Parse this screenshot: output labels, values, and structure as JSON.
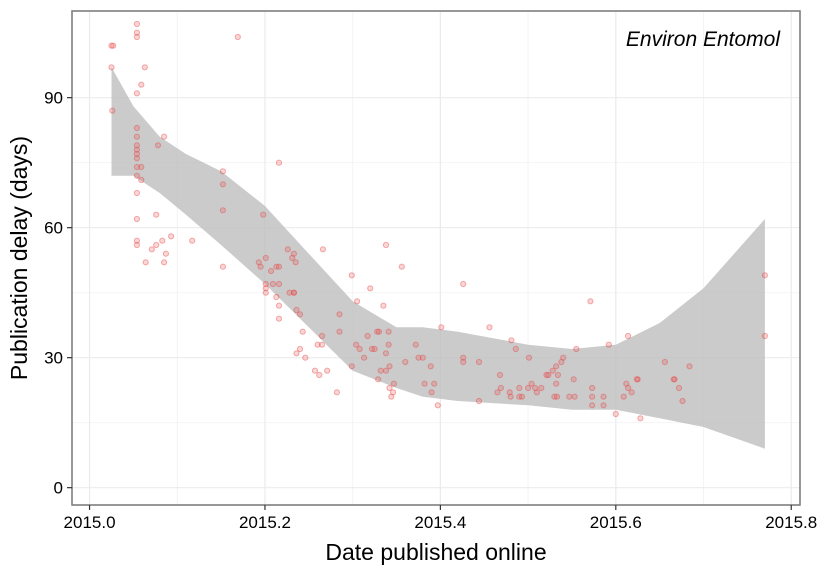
{
  "chart_data": {
    "type": "scatter",
    "title": "",
    "annotation": "Environ Entomol",
    "xlabel": "Date published online",
    "ylabel": "Publication delay (days)",
    "xlim": [
      2014.98,
      2015.81
    ],
    "ylim": [
      -4,
      110
    ],
    "xticks": [
      2015.0,
      2015.2,
      2015.4,
      2015.6,
      2015.8
    ],
    "xtick_labels": [
      "2015.0",
      "2015.2",
      "2015.4",
      "2015.6",
      "2015.8"
    ],
    "yticks": [
      0,
      30,
      60,
      90
    ],
    "ytick_labels": [
      "0",
      "30",
      "60",
      "90"
    ],
    "grid": true,
    "legend": "none",
    "colors": {
      "points": "#e84a4a",
      "band": "#bdbdbd",
      "panel_border": "#7f7f7f",
      "grid": "#ebebeb"
    },
    "points": [
      {
        "x": 2015.025,
        "y": 102
      },
      {
        "x": 2015.027,
        "y": 102
      },
      {
        "x": 2015.025,
        "y": 97
      },
      {
        "x": 2015.026,
        "y": 87
      },
      {
        "x": 2015.054,
        "y": 107
      },
      {
        "x": 2015.054,
        "y": 105
      },
      {
        "x": 2015.054,
        "y": 104
      },
      {
        "x": 2015.054,
        "y": 91
      },
      {
        "x": 2015.054,
        "y": 83
      },
      {
        "x": 2015.054,
        "y": 81
      },
      {
        "x": 2015.054,
        "y": 79
      },
      {
        "x": 2015.054,
        "y": 78
      },
      {
        "x": 2015.054,
        "y": 77
      },
      {
        "x": 2015.054,
        "y": 76
      },
      {
        "x": 2015.054,
        "y": 74
      },
      {
        "x": 2015.054,
        "y": 72
      },
      {
        "x": 2015.054,
        "y": 68
      },
      {
        "x": 2015.054,
        "y": 62
      },
      {
        "x": 2015.054,
        "y": 57
      },
      {
        "x": 2015.054,
        "y": 56
      },
      {
        "x": 2015.059,
        "y": 93
      },
      {
        "x": 2015.059,
        "y": 74
      },
      {
        "x": 2015.059,
        "y": 71
      },
      {
        "x": 2015.063,
        "y": 97
      },
      {
        "x": 2015.064,
        "y": 52
      },
      {
        "x": 2015.071,
        "y": 55
      },
      {
        "x": 2015.076,
        "y": 56
      },
      {
        "x": 2015.076,
        "y": 63
      },
      {
        "x": 2015.078,
        "y": 79
      },
      {
        "x": 2015.083,
        "y": 57
      },
      {
        "x": 2015.085,
        "y": 81
      },
      {
        "x": 2015.085,
        "y": 52
      },
      {
        "x": 2015.087,
        "y": 54
      },
      {
        "x": 2015.093,
        "y": 58
      },
      {
        "x": 2015.117,
        "y": 57
      },
      {
        "x": 2015.152,
        "y": 73
      },
      {
        "x": 2015.152,
        "y": 70
      },
      {
        "x": 2015.152,
        "y": 64
      },
      {
        "x": 2015.152,
        "y": 51
      },
      {
        "x": 2015.169,
        "y": 104
      },
      {
        "x": 2015.193,
        "y": 52
      },
      {
        "x": 2015.195,
        "y": 51
      },
      {
        "x": 2015.198,
        "y": 63
      },
      {
        "x": 2015.201,
        "y": 53
      },
      {
        "x": 2015.201,
        "y": 47
      },
      {
        "x": 2015.201,
        "y": 46
      },
      {
        "x": 2015.201,
        "y": 45
      },
      {
        "x": 2015.207,
        "y": 50
      },
      {
        "x": 2015.209,
        "y": 47
      },
      {
        "x": 2015.213,
        "y": 51
      },
      {
        "x": 2015.213,
        "y": 44
      },
      {
        "x": 2015.216,
        "y": 75
      },
      {
        "x": 2015.216,
        "y": 51
      },
      {
        "x": 2015.216,
        "y": 47
      },
      {
        "x": 2015.216,
        "y": 42
      },
      {
        "x": 2015.216,
        "y": 39
      },
      {
        "x": 2015.226,
        "y": 55
      },
      {
        "x": 2015.228,
        "y": 45
      },
      {
        "x": 2015.231,
        "y": 53
      },
      {
        "x": 2015.233,
        "y": 54
      },
      {
        "x": 2015.233,
        "y": 45
      },
      {
        "x": 2015.233,
        "y": 45
      },
      {
        "x": 2015.235,
        "y": 52
      },
      {
        "x": 2015.236,
        "y": 41
      },
      {
        "x": 2015.236,
        "y": 31
      },
      {
        "x": 2015.24,
        "y": 40
      },
      {
        "x": 2015.24,
        "y": 32
      },
      {
        "x": 2015.243,
        "y": 36
      },
      {
        "x": 2015.246,
        "y": 30
      },
      {
        "x": 2015.257,
        "y": 27
      },
      {
        "x": 2015.26,
        "y": 33
      },
      {
        "x": 2015.262,
        "y": 26
      },
      {
        "x": 2015.265,
        "y": 35
      },
      {
        "x": 2015.265,
        "y": 33
      },
      {
        "x": 2015.266,
        "y": 55
      },
      {
        "x": 2015.271,
        "y": 27
      },
      {
        "x": 2015.282,
        "y": 22
      },
      {
        "x": 2015.285,
        "y": 40
      },
      {
        "x": 2015.285,
        "y": 36
      },
      {
        "x": 2015.299,
        "y": 49
      },
      {
        "x": 2015.299,
        "y": 28
      },
      {
        "x": 2015.304,
        "y": 33
      },
      {
        "x": 2015.305,
        "y": 43
      },
      {
        "x": 2015.308,
        "y": 32
      },
      {
        "x": 2015.313,
        "y": 30
      },
      {
        "x": 2015.317,
        "y": 35
      },
      {
        "x": 2015.32,
        "y": 46
      },
      {
        "x": 2015.322,
        "y": 32
      },
      {
        "x": 2015.325,
        "y": 32
      },
      {
        "x": 2015.328,
        "y": 36
      },
      {
        "x": 2015.329,
        "y": 25
      },
      {
        "x": 2015.33,
        "y": 36
      },
      {
        "x": 2015.332,
        "y": 27
      },
      {
        "x": 2015.335,
        "y": 42
      },
      {
        "x": 2015.338,
        "y": 56
      },
      {
        "x": 2015.338,
        "y": 31
      },
      {
        "x": 2015.338,
        "y": 27
      },
      {
        "x": 2015.341,
        "y": 36
      },
      {
        "x": 2015.341,
        "y": 33
      },
      {
        "x": 2015.342,
        "y": 28
      },
      {
        "x": 2015.342,
        "y": 23
      },
      {
        "x": 2015.344,
        "y": 21
      },
      {
        "x": 2015.346,
        "y": 22
      },
      {
        "x": 2015.347,
        "y": 24
      },
      {
        "x": 2015.356,
        "y": 51
      },
      {
        "x": 2015.36,
        "y": 29
      },
      {
        "x": 2015.372,
        "y": 33
      },
      {
        "x": 2015.375,
        "y": 30
      },
      {
        "x": 2015.38,
        "y": 30
      },
      {
        "x": 2015.382,
        "y": 24
      },
      {
        "x": 2015.389,
        "y": 28
      },
      {
        "x": 2015.39,
        "y": 22
      },
      {
        "x": 2015.393,
        "y": 24
      },
      {
        "x": 2015.397,
        "y": 19
      },
      {
        "x": 2015.401,
        "y": 37
      },
      {
        "x": 2015.426,
        "y": 47
      },
      {
        "x": 2015.426,
        "y": 30
      },
      {
        "x": 2015.426,
        "y": 29
      },
      {
        "x": 2015.444,
        "y": 20
      },
      {
        "x": 2015.444,
        "y": 29
      },
      {
        "x": 2015.456,
        "y": 37
      },
      {
        "x": 2015.465,
        "y": 22
      },
      {
        "x": 2015.468,
        "y": 26
      },
      {
        "x": 2015.469,
        "y": 23
      },
      {
        "x": 2015.479,
        "y": 22
      },
      {
        "x": 2015.48,
        "y": 21
      },
      {
        "x": 2015.481,
        "y": 34
      },
      {
        "x": 2015.486,
        "y": 32
      },
      {
        "x": 2015.49,
        "y": 21
      },
      {
        "x": 2015.49,
        "y": 23
      },
      {
        "x": 2015.493,
        "y": 21
      },
      {
        "x": 2015.5,
        "y": 23
      },
      {
        "x": 2015.501,
        "y": 30
      },
      {
        "x": 2015.504,
        "y": 24
      },
      {
        "x": 2015.508,
        "y": 23
      },
      {
        "x": 2015.51,
        "y": 22
      },
      {
        "x": 2015.515,
        "y": 23
      },
      {
        "x": 2015.521,
        "y": 26
      },
      {
        "x": 2015.523,
        "y": 26
      },
      {
        "x": 2015.528,
        "y": 27
      },
      {
        "x": 2015.53,
        "y": 21
      },
      {
        "x": 2015.532,
        "y": 28
      },
      {
        "x": 2015.532,
        "y": 24
      },
      {
        "x": 2015.533,
        "y": 21
      },
      {
        "x": 2015.534,
        "y": 26
      },
      {
        "x": 2015.538,
        "y": 29
      },
      {
        "x": 2015.54,
        "y": 30
      },
      {
        "x": 2015.547,
        "y": 21
      },
      {
        "x": 2015.552,
        "y": 25
      },
      {
        "x": 2015.553,
        "y": 21
      },
      {
        "x": 2015.555,
        "y": 32
      },
      {
        "x": 2015.571,
        "y": 43
      },
      {
        "x": 2015.573,
        "y": 23
      },
      {
        "x": 2015.573,
        "y": 21
      },
      {
        "x": 2015.573,
        "y": 19
      },
      {
        "x": 2015.586,
        "y": 21
      },
      {
        "x": 2015.586,
        "y": 19
      },
      {
        "x": 2015.592,
        "y": 33
      },
      {
        "x": 2015.6,
        "y": 17
      },
      {
        "x": 2015.609,
        "y": 21
      },
      {
        "x": 2015.612,
        "y": 24
      },
      {
        "x": 2015.614,
        "y": 35
      },
      {
        "x": 2015.614,
        "y": 23
      },
      {
        "x": 2015.618,
        "y": 22
      },
      {
        "x": 2015.624,
        "y": 25
      },
      {
        "x": 2015.625,
        "y": 25
      },
      {
        "x": 2015.628,
        "y": 16
      },
      {
        "x": 2015.656,
        "y": 29
      },
      {
        "x": 2015.666,
        "y": 25
      },
      {
        "x": 2015.667,
        "y": 25
      },
      {
        "x": 2015.672,
        "y": 23
      },
      {
        "x": 2015.676,
        "y": 20
      },
      {
        "x": 2015.684,
        "y": 28
      },
      {
        "x": 2015.77,
        "y": 49
      },
      {
        "x": 2015.77,
        "y": 35
      }
    ],
    "smooth_band": {
      "x": [
        2015.025,
        2015.05,
        2015.08,
        2015.11,
        2015.15,
        2015.2,
        2015.25,
        2015.3,
        2015.35,
        2015.38,
        2015.42,
        2015.5,
        2015.55,
        2015.6,
        2015.65,
        2015.7,
        2015.77
      ],
      "upper": [
        97,
        88,
        81,
        77,
        73,
        65,
        54,
        43,
        37,
        37,
        36,
        33,
        32,
        33,
        38,
        46,
        62
      ],
      "lower": [
        72,
        72,
        68,
        63,
        56,
        47,
        37,
        27,
        23,
        21,
        20,
        19,
        18,
        18,
        16,
        14,
        9
      ]
    }
  }
}
